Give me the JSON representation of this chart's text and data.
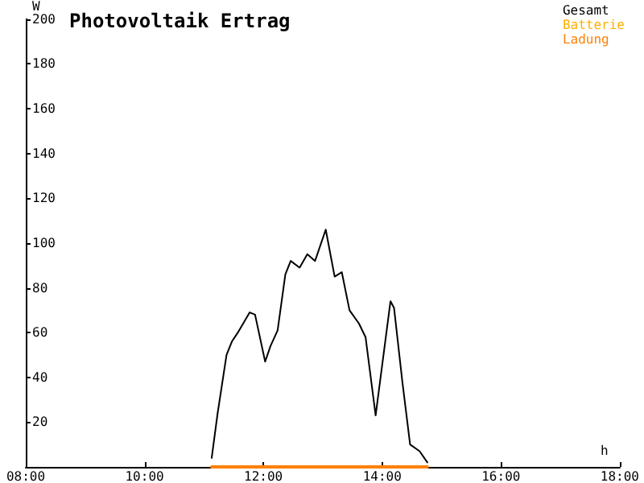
{
  "chart_data": {
    "type": "line",
    "title": "Photovoltaik Ertrag",
    "xlabel": "h",
    "ylabel": "W",
    "xlim": [
      8,
      18
    ],
    "ylim": [
      0,
      200
    ],
    "xticks": [
      {
        "value": 8,
        "label": "08:00"
      },
      {
        "value": 10,
        "label": "10:00"
      },
      {
        "value": 12,
        "label": "12:00"
      },
      {
        "value": 14,
        "label": "14:00"
      },
      {
        "value": 16,
        "label": "16:00"
      },
      {
        "value": 18,
        "label": "18:00"
      }
    ],
    "yticks": [
      20,
      40,
      60,
      80,
      100,
      120,
      140,
      160,
      180,
      200
    ],
    "grid": false,
    "legend": "top right",
    "series": [
      {
        "name": "Gesamt",
        "color": "#000000",
        "x": [
          11.13,
          11.23,
          11.38,
          11.47,
          11.57,
          11.77,
          11.86,
          12.03,
          12.12,
          12.24,
          12.37,
          12.46,
          12.61,
          12.74,
          12.87,
          13.05,
          13.2,
          13.32,
          13.45,
          13.61,
          13.72,
          13.89,
          14.14,
          14.2,
          14.34,
          14.47,
          14.63,
          14.76
        ],
        "values": [
          4,
          24,
          50,
          56,
          60,
          69,
          68,
          47,
          54,
          61,
          86,
          92,
          89,
          95,
          92,
          106,
          85,
          87,
          70,
          64,
          58,
          23,
          74,
          71,
          38,
          10,
          7,
          2
        ]
      },
      {
        "name": "Batterie",
        "color": "#ffb000"
      },
      {
        "name": "Ladung",
        "color": "#ff8000",
        "x": [
          11.13,
          14.76
        ],
        "values": [
          0,
          0
        ]
      }
    ]
  }
}
